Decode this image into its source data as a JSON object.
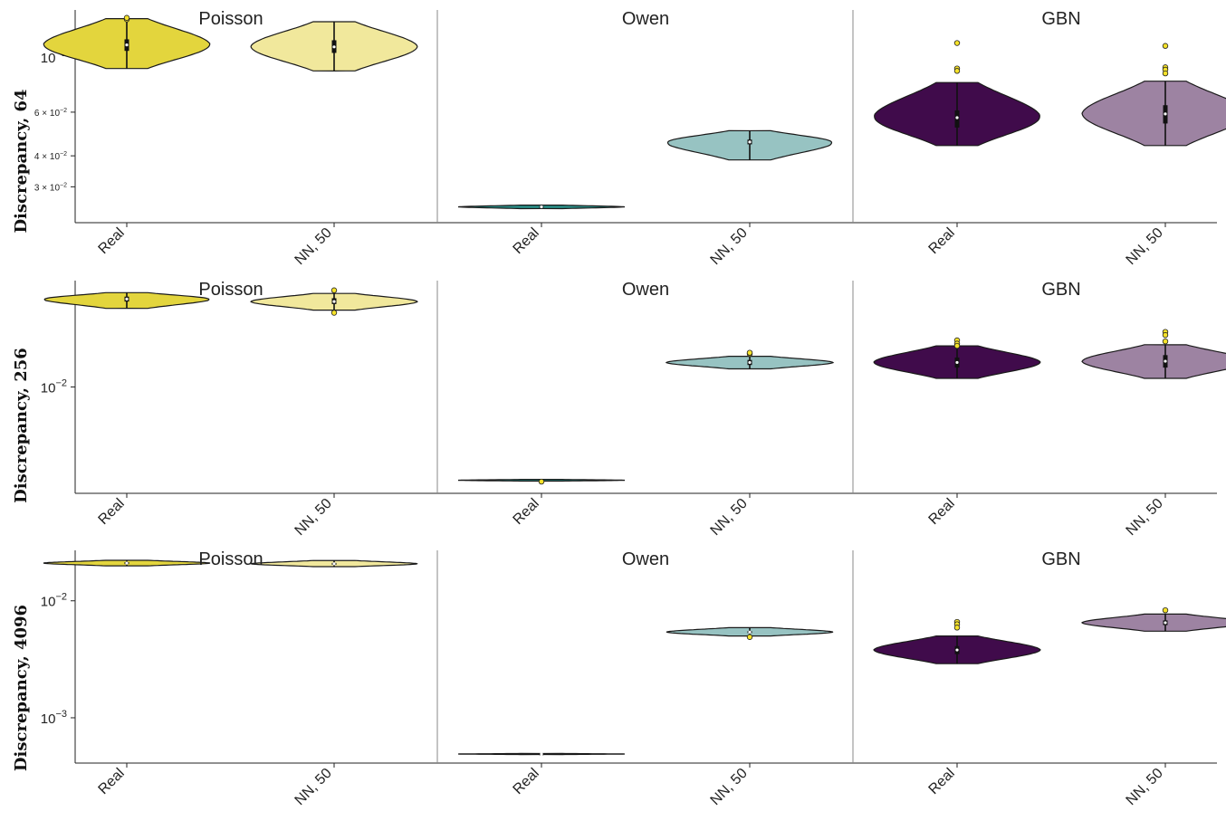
{
  "chart_data": [
    {
      "type": "violin",
      "ylabel": "Discrepancy, 64",
      "yscale": "log",
      "ylim": [
        0.0215,
        0.155
      ],
      "yticks": [
        {
          "value": 0.1,
          "mant": "10",
          "exp": "−1",
          "size": "large"
        },
        {
          "value": 0.06,
          "mant": "6 × 10",
          "exp": "−2",
          "size": "small"
        },
        {
          "value": 0.04,
          "mant": "4 × 10",
          "exp": "−2",
          "size": "small"
        },
        {
          "value": 0.03,
          "mant": "3 × 10",
          "exp": "−2",
          "size": "small"
        }
      ],
      "panels": [
        {
          "title": "Poisson",
          "categories": [
            "Real",
            "NN, 50"
          ],
          "violins": [
            {
              "color": "#e3d53d",
              "min": 0.09,
              "max": 0.143,
              "median": 0.112,
              "q1": 0.106,
              "q3": 0.118,
              "outliers": [
                0.142,
                0.144
              ]
            },
            {
              "color": "#f1e89c",
              "min": 0.088,
              "max": 0.139,
              "median": 0.11,
              "q1": 0.104,
              "q3": 0.117,
              "outliers": []
            }
          ]
        },
        {
          "title": "Owen",
          "categories": [
            "Real",
            "NN, 50"
          ],
          "violins": [
            {
              "color": "#2a8f88",
              "min": 0.0245,
              "max": 0.0253,
              "median": 0.0249,
              "q1": 0.0248,
              "q3": 0.025,
              "outliers": []
            },
            {
              "color": "#97c3c2",
              "min": 0.0385,
              "max": 0.0505,
              "median": 0.0455,
              "q1": 0.0445,
              "q3": 0.0465,
              "outliers": []
            }
          ]
        },
        {
          "title": "GBN",
          "categories": [
            "Real",
            "NN, 50"
          ],
          "violins": [
            {
              "color": "#400b4b",
              "min": 0.044,
              "max": 0.079,
              "median": 0.057,
              "q1": 0.052,
              "q3": 0.061,
              "outliers": [
                0.114,
                0.09,
                0.088
              ]
            },
            {
              "color": "#9d83a2",
              "min": 0.044,
              "max": 0.08,
              "median": 0.059,
              "q1": 0.054,
              "q3": 0.064,
              "outliers": [
                0.111,
                0.091,
                0.089,
                0.086
              ]
            }
          ]
        }
      ]
    },
    {
      "type": "violin",
      "ylabel": "Discrepancy, 256",
      "yscale": "log",
      "ylim": [
        0.00488,
        0.0205
      ],
      "yticks": [
        {
          "value": 0.01,
          "mant": "10",
          "exp": "−2",
          "size": "large"
        }
      ],
      "panels": [
        {
          "title": "Poisson",
          "categories": [
            "Real",
            "NN, 50"
          ],
          "violins": [
            {
              "color": "#e3d53d",
              "min": 0.017,
              "max": 0.0189,
              "median": 0.0181,
              "q1": 0.0178,
              "q3": 0.0184,
              "outliers": []
            },
            {
              "color": "#f1e89c",
              "min": 0.0168,
              "max": 0.0188,
              "median": 0.0178,
              "q1": 0.0175,
              "q3": 0.0182,
              "outliers": [
                0.0165,
                0.0192
              ]
            }
          ]
        },
        {
          "title": "Owen",
          "categories": [
            "Real",
            "NN, 50"
          ],
          "violins": [
            {
              "color": "#2a8f88",
              "min": 0.0053,
              "max": 0.00536,
              "median": 0.00533,
              "q1": 0.00532,
              "q3": 0.00534,
              "outliers": [
                0.00528
              ]
            },
            {
              "color": "#97c3c2",
              "min": 0.0113,
              "max": 0.0123,
              "median": 0.0118,
              "q1": 0.0116,
              "q3": 0.012,
              "outliers": [
                0.0125,
                0.0126
              ]
            }
          ]
        },
        {
          "title": "GBN",
          "categories": [
            "Real",
            "NN, 50"
          ],
          "violins": [
            {
              "color": "#400b4b",
              "min": 0.0106,
              "max": 0.0132,
              "median": 0.0118,
              "q1": 0.0114,
              "q3": 0.0122,
              "outliers": [
                0.0137,
                0.0134,
                0.0132
              ]
            },
            {
              "color": "#9d83a2",
              "min": 0.0106,
              "max": 0.0133,
              "median": 0.0119,
              "q1": 0.0114,
              "q3": 0.0124,
              "outliers": [
                0.0145,
                0.0142,
                0.0136
              ]
            }
          ]
        }
      ]
    },
    {
      "type": "violin",
      "ylabel": "Discrepancy, 4096",
      "yscale": "log",
      "ylim": [
        0.00041,
        0.027
      ],
      "yticks": [
        {
          "value": 0.01,
          "mant": "10",
          "exp": "−2",
          "size": "large"
        },
        {
          "value": 0.001,
          "mant": "10",
          "exp": "−3",
          "size": "large"
        }
      ],
      "panels": [
        {
          "title": "Poisson",
          "categories": [
            "Real",
            "NN, 50"
          ],
          "violins": [
            {
              "color": "#e3d53d",
              "min": 0.0199,
              "max": 0.0222,
              "median": 0.021,
              "q1": 0.0206,
              "q3": 0.0214,
              "outliers": []
            },
            {
              "color": "#f1e89c",
              "min": 0.0196,
              "max": 0.0221,
              "median": 0.0207,
              "q1": 0.0203,
              "q3": 0.0211,
              "outliers": []
            }
          ]
        },
        {
          "title": "Owen",
          "categories": [
            "Real",
            "NN, 50"
          ],
          "violins": [
            {
              "color": "#2a8f88",
              "min": 0.000485,
              "max": 0.000495,
              "median": 0.00049,
              "q1": 0.000488,
              "q3": 0.000492,
              "outliers": []
            },
            {
              "color": "#97c3c2",
              "min": 0.005,
              "max": 0.0059,
              "median": 0.0054,
              "q1": 0.0053,
              "q3": 0.0055,
              "outliers": [
                0.0049
              ]
            }
          ]
        },
        {
          "title": "GBN",
          "categories": [
            "Real",
            "NN, 50"
          ],
          "violins": [
            {
              "color": "#400b4b",
              "min": 0.0029,
              "max": 0.005,
              "median": 0.0038,
              "q1": 0.0035,
              "q3": 0.0041,
              "outliers": [
                0.0066,
                0.0063,
                0.0059
              ]
            },
            {
              "color": "#9d83a2",
              "min": 0.0055,
              "max": 0.0077,
              "median": 0.0065,
              "q1": 0.0062,
              "q3": 0.0068,
              "outliers": [
                0.0083
              ]
            }
          ]
        }
      ]
    }
  ]
}
